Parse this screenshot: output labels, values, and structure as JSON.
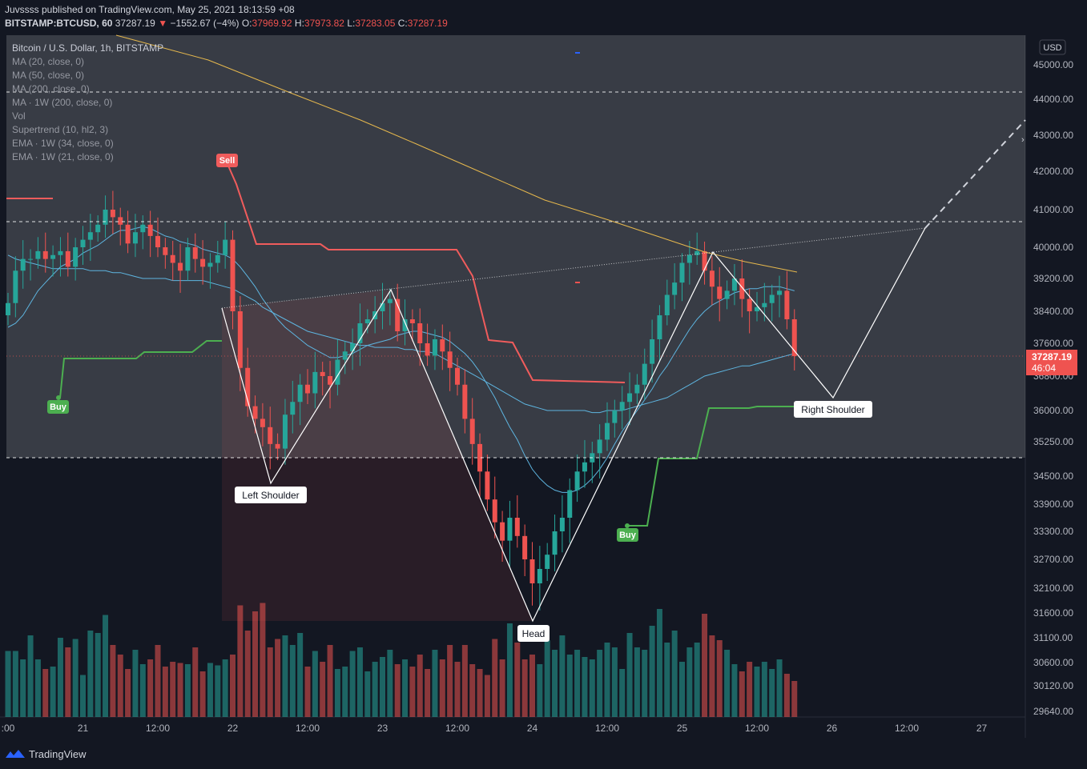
{
  "header": {
    "line1": "Juvssss published on TradingView.com, May 25, 2021 18:13:59 +08",
    "symbol": "BITSTAMP:BTCUSD, 60",
    "last": "37287.19",
    "arrow": "▼",
    "change": "−1552.67 (−4%)",
    "o_label": "O:",
    "o_val": "37969.92",
    "h_label": "H:",
    "h_val": "37973.82",
    "l_label": "L:",
    "l_val": "37283.05",
    "c_label": "C:",
    "c_val": "37287.19"
  },
  "legend": {
    "title": "Bitcoin / U.S. Dollar, 1h, BITSTAMP",
    "items": [
      "MA (20, close, 0)",
      "MA (50, close, 0)",
      "MA (200, close, 0)",
      "MA · 1W (200, close, 0)",
      "Vol",
      "Supertrend (10, hl2, 3)",
      "EMA · 1W (34, close, 0)",
      "EMA · 1W (21, close, 0)"
    ]
  },
  "footer": {
    "brand": "TradingView"
  },
  "colors": {
    "background": "#131722",
    "up": "#26a69a",
    "down": "#ef5350",
    "ma": "#5eb5e0",
    "ma200": "#e6b84d",
    "supertrend_up": "#4caf50",
    "supertrend_down": "#f05c5c",
    "pattern": "#ffffff"
  },
  "chart_data": {
    "type": "candlestick",
    "symbol": "BITSTAMP:BTCUSD",
    "timeframe": "1h",
    "currency": "USD",
    "y_ticks": [
      45000,
      44000,
      43000,
      42000,
      41000,
      40000,
      39200,
      38400,
      37600,
      36800,
      36000,
      35250,
      34500,
      33900,
      33300,
      32700,
      32100,
      31600,
      31100,
      30600,
      30120,
      29640
    ],
    "y_tick_labels": [
      "45000.00",
      "44000.00",
      "43000.00",
      "42000.00",
      "41000.00",
      "40000.00",
      "39200.00",
      "38400.00",
      "37600.00",
      "36800.00",
      "36000.00",
      "35250.00",
      "34500.00",
      "33900.00",
      "33300.00",
      "32700.00",
      "32100.00",
      "31600.00",
      "31100.00",
      "30600.00",
      "30120.00",
      "29640.00"
    ],
    "x_labels": [
      {
        "t": 0,
        "label": ":00"
      },
      {
        "t": 10,
        "label": "21"
      },
      {
        "t": 20,
        "label": "12:00"
      },
      {
        "t": 30,
        "label": "22"
      },
      {
        "t": 40,
        "label": "12:00"
      },
      {
        "t": 50,
        "label": "23"
      },
      {
        "t": 60,
        "label": "12:00"
      },
      {
        "t": 70,
        "label": "24"
      },
      {
        "t": 80,
        "label": "12:00"
      },
      {
        "t": 90,
        "label": "25"
      },
      {
        "t": 100,
        "label": "12:00"
      },
      {
        "t": 110,
        "label": "26"
      },
      {
        "t": 120,
        "label": "12:00"
      },
      {
        "t": 130,
        "label": "27"
      }
    ],
    "current_price": "37287.19",
    "countdown": "46:04",
    "horizontal_lines": [
      44200,
      40650,
      35000
    ],
    "closes": [
      38600,
      39400,
      39700,
      39700,
      39900,
      39700,
      39800,
      39900,
      39500,
      40000,
      40200,
      40400,
      40600,
      41000,
      40800,
      40600,
      40100,
      40400,
      40600,
      40300,
      40000,
      39800,
      39600,
      39400,
      40000,
      39700,
      39500,
      39600,
      39800,
      40200,
      38400,
      37000,
      36100,
      35800,
      35600,
      35200,
      35100,
      35900,
      36200,
      36600,
      36400,
      36900,
      36800,
      36600,
      37200,
      37400,
      37600,
      38100,
      38200,
      38400,
      38600,
      38700,
      37900,
      38200,
      38100,
      37600,
      37300,
      37700,
      37400,
      37000,
      36600,
      35800,
      35200,
      34600,
      34000,
      33500,
      33100,
      33600,
      33200,
      32700,
      32200,
      32500,
      32800,
      33300,
      33600,
      34200,
      34600,
      34800,
      35000,
      35300,
      35700,
      36000,
      36200,
      36400,
      36600,
      37100,
      37700,
      38300,
      38800,
      39100,
      39600,
      39800,
      39900,
      39400,
      39000,
      38700,
      38900,
      39200,
      38700,
      38400,
      38500,
      38600,
      38800,
      38900,
      38200,
      37287.19
    ],
    "volumes": [
      55,
      55,
      48,
      68,
      48,
      40,
      42,
      66,
      58,
      65,
      35,
      72,
      70,
      85,
      60,
      52,
      40,
      56,
      44,
      48,
      60,
      42,
      46,
      45,
      44,
      58,
      38,
      45,
      43,
      48,
      52,
      93,
      72,
      88,
      95,
      58,
      65,
      68,
      60,
      70,
      42,
      55,
      46,
      60,
      40,
      42,
      55,
      58,
      38,
      46,
      50,
      56,
      44,
      48,
      42,
      52,
      40,
      56,
      48,
      60,
      46,
      60,
      44,
      40,
      35,
      65,
      48,
      78,
      62,
      48,
      52,
      44,
      64,
      56,
      68,
      52,
      56,
      50,
      48,
      56,
      62,
      58,
      40,
      70,
      58,
      56,
      76,
      90,
      62,
      72,
      46,
      58,
      62,
      86,
      68,
      64,
      56,
      44,
      38,
      46,
      42,
      46,
      40,
      48,
      36,
      30
    ],
    "ma20": [
      38000,
      38100,
      38300,
      38600,
      38900,
      39100,
      39300,
      39500,
      39600,
      39700,
      39850,
      39950,
      40050,
      40200,
      40350,
      40450,
      40450,
      40500,
      40550,
      40500,
      40400,
      40300,
      40250,
      40150,
      40100,
      40050,
      39950,
      39900,
      39850,
      39800,
      39700,
      39500,
      39250,
      39000,
      38700,
      38450,
      38200,
      38000,
      37850,
      37700,
      37550,
      37450,
      37350,
      37250,
      37250,
      37300,
      37350,
      37450,
      37550,
      37600,
      37650,
      37700,
      37800,
      37850,
      37900,
      37900,
      37850,
      37800,
      37750,
      37650,
      37500,
      37350,
      37150,
      36900,
      36600,
      36300,
      35950,
      35600,
      35300,
      34950,
      34650,
      34450,
      34300,
      34200,
      34150,
      34150,
      34200,
      34300,
      34450,
      34650,
      34900,
      35200,
      35500,
      35750,
      36000,
      36250,
      36500,
      36800,
      37050,
      37350,
      37650,
      37950,
      38200,
      38400,
      38550,
      38650,
      38750,
      38850,
      38900,
      38950,
      38950,
      39000,
      39000,
      39000,
      38950,
      38900
    ],
    "ma50": [
      39800,
      39700,
      39650,
      39600,
      39550,
      39500,
      39450,
      39450,
      39450,
      39450,
      39450,
      39400,
      39400,
      39400,
      39350,
      39350,
      39300,
      39250,
      39200,
      39200,
      39200,
      39200,
      39150,
      39150,
      39150,
      39150,
      39150,
      39100,
      39050,
      39000,
      38950,
      38850,
      38750,
      38650,
      38500,
      38400,
      38300,
      38200,
      38100,
      38000,
      37900,
      37850,
      37800,
      37750,
      37700,
      37650,
      37600,
      37550,
      37550,
      37500,
      37500,
      37500,
      37500,
      37450,
      37450,
      37400,
      37400,
      37350,
      37250,
      37150,
      37050,
      36950,
      36850,
      36750,
      36650,
      36550,
      36450,
      36350,
      36250,
      36150,
      36100,
      36050,
      36000,
      36000,
      36000,
      36000,
      36000,
      36000,
      35950,
      35950,
      36000,
      36000,
      36000,
      36050,
      36100,
      36150,
      36200,
      36250,
      36300,
      36400,
      36500,
      36600,
      36700,
      36800,
      36850,
      36900,
      36950,
      37000,
      37050,
      37050,
      37100,
      37150,
      37200,
      37250,
      37300,
      37350
    ]
  }
}
